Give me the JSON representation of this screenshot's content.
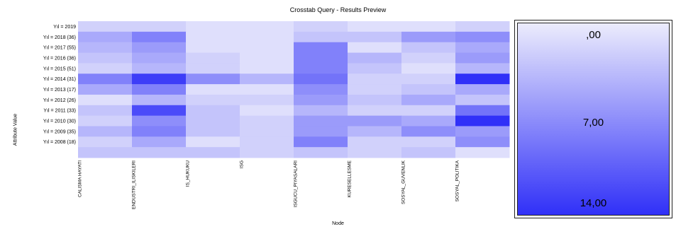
{
  "colors": {
    "low": "#ececfc",
    "high": "#3030f8",
    "legend_top": "#ececfc",
    "legend_bottom": "#3030f8"
  },
  "chart_data": {
    "type": "heatmap",
    "title": "Crosstab Query - Results Preview",
    "xlabel": "Node",
    "ylabel": "Attribute Value",
    "columns": [
      "CALISMA HAYATI",
      "ENDUSTRI_ILISKILERI",
      "IS_HUKUKU",
      "ISG",
      "ISGUCU_PIYASALARI",
      "KURESELLESME",
      "SOSYAL_GUVENLIK",
      "SOSYAL_POLITIKA"
    ],
    "rows": [
      "Yıl = 2019",
      "Yıl = 2018 (36)",
      "Yıl = 2017 (55)",
      "Yıl = 2016 (36)",
      "Yıl = 2015 (51)",
      "Yıl = 2014 (31)",
      "Yıl = 2013 (17)",
      "Yıl = 2012 (26)",
      "Yıl = 2011 (33)",
      "Yıl = 2010 (30)",
      "Yıl = 2009 (35)",
      "Yıl = 2008 (18)",
      ""
    ],
    "values": [
      [
        2,
        2,
        1,
        1,
        2,
        1,
        1,
        2
      ],
      [
        5,
        8,
        1,
        1,
        3,
        3,
        6,
        7
      ],
      [
        4,
        6,
        1,
        1,
        8,
        1,
        3,
        5
      ],
      [
        3,
        5,
        2,
        1,
        8,
        4,
        2,
        6
      ],
      [
        2,
        4,
        2,
        1,
        8,
        3,
        1,
        4
      ],
      [
        8,
        13,
        7,
        4,
        9,
        2,
        2,
        14
      ],
      [
        5,
        8,
        1,
        1,
        7,
        2,
        3,
        5
      ],
      [
        1,
        4,
        2,
        2,
        6,
        3,
        5,
        3
      ],
      [
        3,
        12,
        3,
        1,
        4,
        2,
        2,
        9
      ],
      [
        2,
        7,
        3,
        2,
        6,
        6,
        5,
        14
      ],
      [
        4,
        8,
        3,
        2,
        6,
        4,
        7,
        6
      ],
      [
        2,
        5,
        1,
        2,
        8,
        2,
        2,
        7
      ],
      [
        3,
        3,
        3,
        2,
        3,
        2,
        3,
        1
      ]
    ],
    "legend": {
      "min_label": ",00",
      "mid_label": "7,00",
      "max_label": "14,00",
      "min": 0,
      "max": 14,
      "placement": "right"
    }
  }
}
